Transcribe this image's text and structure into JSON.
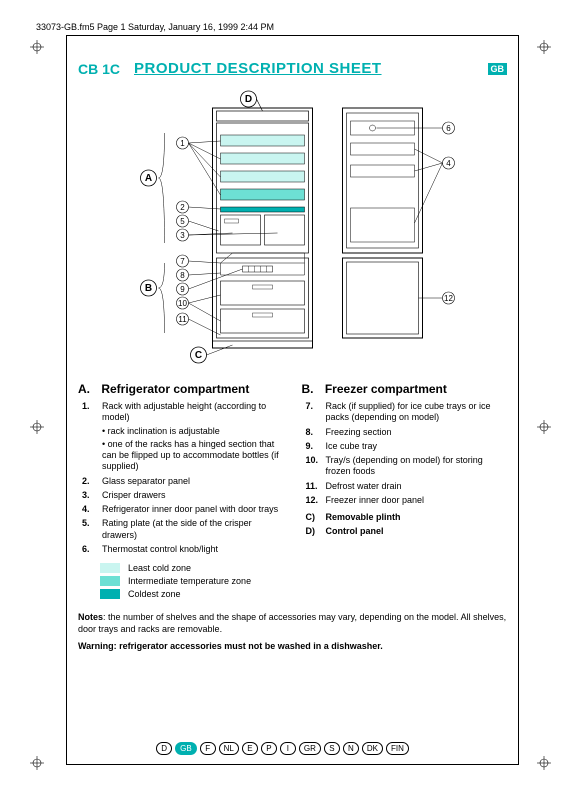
{
  "meta": {
    "header": "33073-GB.fm5  Page 1  Saturday, January 16, 1999  2:44 PM"
  },
  "title": {
    "model": "CB 1C",
    "text": "PRODUCT DESCRIPTION SHEET",
    "badge": "GB"
  },
  "diagram": {
    "section_labels": {
      "A": "A",
      "B": "B",
      "C": "C",
      "D": "D"
    },
    "callouts": [
      "1",
      "2",
      "3",
      "4",
      "5",
      "6",
      "7",
      "8",
      "9",
      "10",
      "11",
      "12"
    ]
  },
  "sectionA": {
    "letter": "A.",
    "title": "Refrigerator compartment",
    "items": [
      {
        "n": "1.",
        "t": "Rack with adjustable height (according to model)",
        "sub": [
          "rack inclination is adjustable",
          "one of the racks has a hinged section that can be flipped up to accommodate bottles (if supplied)"
        ]
      },
      {
        "n": "2.",
        "t": "Glass separator panel"
      },
      {
        "n": "3.",
        "t": "Crisper drawers"
      },
      {
        "n": "4.",
        "t": "Refrigerator inner door panel with door trays"
      },
      {
        "n": "5.",
        "t": "Rating plate (at the side of the crisper drawers)"
      },
      {
        "n": "6.",
        "t": "Thermostat control knob/light"
      }
    ]
  },
  "sectionB": {
    "letter": "B.",
    "title": "Freezer compartment",
    "items": [
      {
        "n": "7.",
        "t": "Rack (if supplied) for ice cube trays or ice packs (depending on model)"
      },
      {
        "n": "8.",
        "t": "Freezing section"
      },
      {
        "n": "9.",
        "t": "Ice cube tray"
      },
      {
        "n": "10.",
        "t": "Tray/s (depending on model) for storing frozen foods"
      },
      {
        "n": "11.",
        "t": "Defrost water drain"
      },
      {
        "n": "12.",
        "t": "Freezer inner door panel"
      }
    ],
    "extra": [
      {
        "n": "C)",
        "t": "Removable plinth"
      },
      {
        "n": "D)",
        "t": "Control panel"
      }
    ]
  },
  "zones": [
    {
      "color": "#c9f5f0",
      "label": "Least cold zone"
    },
    {
      "color": "#6de0d4",
      "label": "Intermediate temperature zone"
    },
    {
      "color": "#00b0b0",
      "label": "Coldest zone"
    }
  ],
  "notes": {
    "label": "Notes",
    "text": ": the number of shelves and the shape of accessories may vary, depending on the model. All shelves, door trays and racks are removable."
  },
  "warning": {
    "label": "Warning: refrigerator accessories must not be washed in a dishwasher."
  },
  "countries": [
    "D",
    "GB",
    "F",
    "NL",
    "E",
    "P",
    "I",
    "GR",
    "S",
    "N",
    "DK",
    "FIN"
  ],
  "colors": {
    "accent": "#00b0b0",
    "zone_light": "#c9f5f0",
    "zone_mid": "#6de0d4",
    "zone_dark": "#00b0b0"
  }
}
